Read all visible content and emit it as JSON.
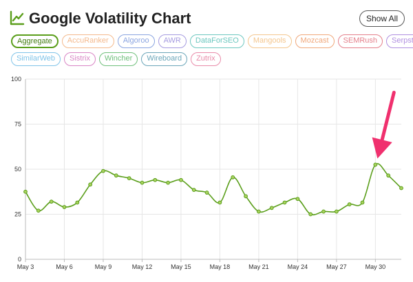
{
  "header": {
    "title": "Google Volatility Chart",
    "title_icon": "trending-line-icon",
    "show_all_label": "Show All"
  },
  "chips": [
    {
      "label": "Aggregate",
      "color": "#5a9e1a",
      "active": true
    },
    {
      "label": "AccuRanker",
      "color": "#f4b98c",
      "active": false
    },
    {
      "label": "Algoroo",
      "color": "#8aa4e0",
      "active": false
    },
    {
      "label": "AWR",
      "color": "#a59be0",
      "active": false
    },
    {
      "label": "DataForSEO",
      "color": "#6cc7bf",
      "active": false
    },
    {
      "label": "Mangools",
      "color": "#f4c68e",
      "active": false
    },
    {
      "label": "Mozcast",
      "color": "#f0a77a",
      "active": false
    },
    {
      "label": "SEMRush",
      "color": "#e47f8a",
      "active": false
    },
    {
      "label": "Serpstat",
      "color": "#b08fe0",
      "active": false
    },
    {
      "label": "SimilarWeb",
      "color": "#7fc3e8",
      "active": false
    },
    {
      "label": "Sistrix",
      "color": "#d884c4",
      "active": false
    },
    {
      "label": "Wincher",
      "color": "#6fbf7a",
      "active": false
    },
    {
      "label": "Wireboard",
      "color": "#6aa5b8",
      "active": false
    },
    {
      "label": "Zutrix",
      "color": "#e88aa8",
      "active": false
    }
  ],
  "chart_data": {
    "type": "line",
    "title": "",
    "xlabel": "",
    "ylabel": "",
    "ylim": [
      0,
      100
    ],
    "yticks": [
      0,
      25,
      50,
      75,
      100
    ],
    "x_tick_labels": [
      "May 3",
      "May 6",
      "May 9",
      "May 12",
      "May 15",
      "May 18",
      "May 21",
      "May 24",
      "May 27",
      "May 30"
    ],
    "grid": true,
    "line_color": "#5a9e1a",
    "arrow_color": "#f0306e",
    "annotation": "arrow pointing at May 30 peak",
    "series": [
      {
        "x": [
          "May 3",
          "May 4",
          "May 5",
          "May 6",
          "May 7",
          "May 8",
          "May 9",
          "May 10",
          "May 11",
          "May 12",
          "May 13",
          "May 14",
          "May 15",
          "May 16",
          "May 17",
          "May 18",
          "May 19",
          "May 20",
          "May 21",
          "May 22",
          "May 23",
          "May 24",
          "May 25",
          "May 26",
          "May 27",
          "May 28",
          "May 29",
          "May 30",
          "May 31",
          "Jun 1"
        ],
        "values": [
          37.5,
          27,
          32,
          29,
          31.5,
          41.5,
          49,
          46.5,
          45,
          42.5,
          44,
          42.5,
          44,
          38.5,
          37,
          31.5,
          45.5,
          35,
          26.5,
          28.5,
          31.5,
          33.5,
          25,
          26.5,
          26.5,
          30.5,
          31.5,
          52.5,
          46.5,
          39.5
        ]
      }
    ]
  }
}
